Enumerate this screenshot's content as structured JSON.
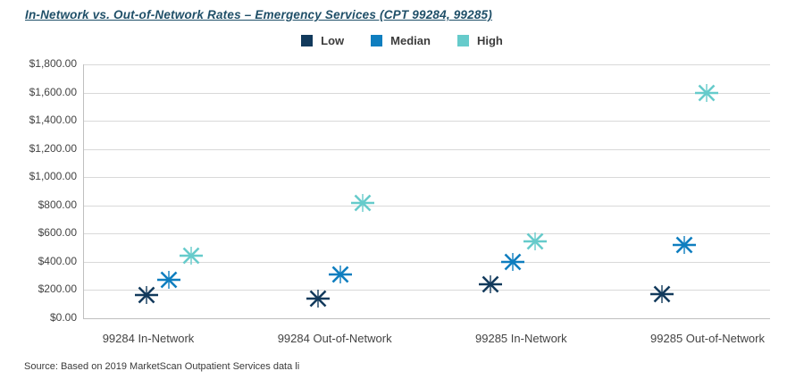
{
  "title": "In-Network vs. Out-of-Network Rates – Emergency Services (CPT 99284, 99285)",
  "source": "Source: Based on 2019 MarketScan Outpatient Services data li",
  "legend": [
    {
      "label": "Low",
      "color": "#123A5C"
    },
    {
      "label": "Median",
      "color": "#0F7EBF"
    },
    {
      "label": "High",
      "color": "#66CBCB"
    }
  ],
  "chart_data": {
    "type": "scatter",
    "title": "In-Network vs. Out-of-Network Rates – Emergency Services (CPT 99284, 99285)",
    "categories": [
      "99284 In-Network",
      "99284 Out-of-Network",
      "99285 In-Network",
      "99285 Out-of-Network"
    ],
    "series": [
      {
        "name": "Low",
        "color": "#123A5C",
        "values": [
          165,
          140,
          240,
          170
        ]
      },
      {
        "name": "Median",
        "color": "#0F7EBF",
        "values": [
          270,
          310,
          400,
          520
        ]
      },
      {
        "name": "High",
        "color": "#66CBCB",
        "values": [
          445,
          820,
          545,
          1600
        ]
      }
    ],
    "xlabel": "",
    "ylabel": "",
    "ylim": [
      0,
      1800
    ],
    "ytick_step": 200,
    "ytick_labels": [
      "$0.00",
      "$200.00",
      "$400.00",
      "$600.00",
      "$800.00",
      "$1,000.00",
      "$1,200.00",
      "$1,400.00",
      "$1,600.00",
      "$1,800.00"
    ],
    "grid": "horizontal",
    "legend_position": "top-center",
    "marker": "asterisk"
  }
}
